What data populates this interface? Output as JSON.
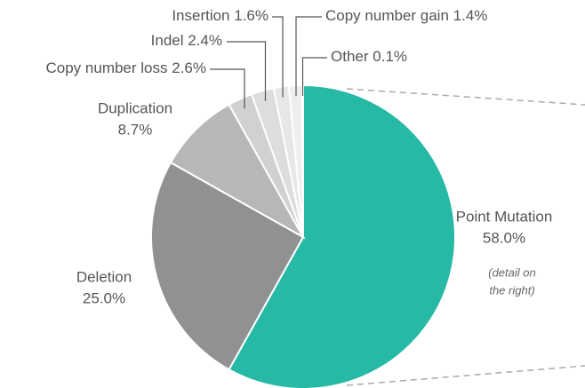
{
  "chart_data": {
    "type": "pie",
    "categories": [
      "Point Mutation",
      "Deletion",
      "Duplication",
      "Copy number loss",
      "Indel",
      "Insertion",
      "Copy number gain",
      "Other"
    ],
    "values": [
      58.0,
      25.0,
      8.7,
      2.6,
      2.4,
      1.6,
      1.4,
      0.1
    ],
    "value_labels": [
      "58.0%",
      "25.0%",
      "8.7%",
      "2.6%",
      "2.4%",
      "1.6%",
      "1.4%",
      "0.1%"
    ],
    "colors": [
      "#26b9a5",
      "#8f9193",
      "#b5b7b9",
      "#cfd1d2",
      "#dcdddd",
      "#e6e7e7",
      "#eeeeee",
      "#f4f4f4"
    ],
    "annotation": [
      "(detail on",
      "the right)"
    ]
  }
}
